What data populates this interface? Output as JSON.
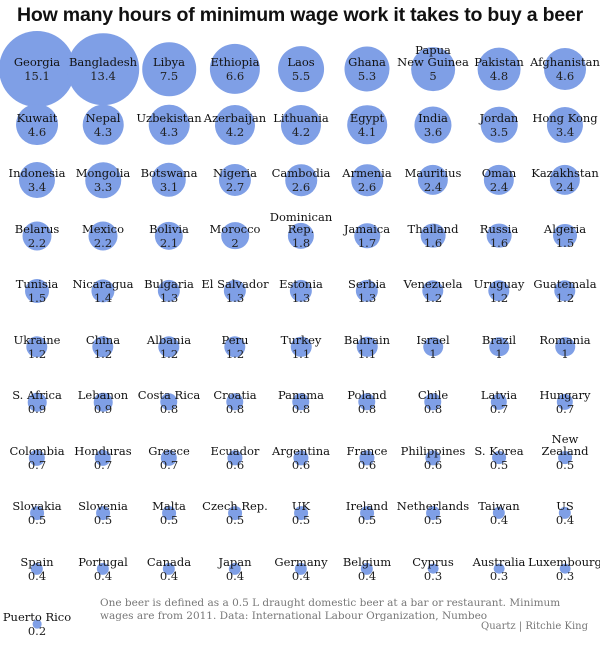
{
  "chart_data": {
    "type": "bubble",
    "title": "How many hours of minimum wage work it takes to buy a beer",
    "unit": "hours",
    "accent_color": "#7f9fe6",
    "items": [
      {
        "name": "Georgia",
        "value": 15.1
      },
      {
        "name": "Bangladesh",
        "value": 13.4
      },
      {
        "name": "Libya",
        "value": 7.5
      },
      {
        "name": "Ethiopia",
        "value": 6.6
      },
      {
        "name": "Laos",
        "value": 5.5
      },
      {
        "name": "Ghana",
        "value": 5.3
      },
      {
        "name": "Papua\nNew Guinea",
        "value": 5
      },
      {
        "name": "Pakistan",
        "value": 4.8
      },
      {
        "name": "Afghanistan",
        "value": 4.6
      },
      {
        "name": "Kuwait",
        "value": 4.6
      },
      {
        "name": "Nepal",
        "value": 4.3
      },
      {
        "name": "Uzbekistan",
        "value": 4.3
      },
      {
        "name": "Azerbaijan",
        "value": 4.2
      },
      {
        "name": "Lithuania",
        "value": 4.2
      },
      {
        "name": "Egypt",
        "value": 4.1
      },
      {
        "name": "India",
        "value": 3.6
      },
      {
        "name": "Jordan",
        "value": 3.5
      },
      {
        "name": "Hong Kong",
        "value": 3.4
      },
      {
        "name": "Indonesia",
        "value": 3.4
      },
      {
        "name": "Mongolia",
        "value": 3.3
      },
      {
        "name": "Botswana",
        "value": 3.1
      },
      {
        "name": "Nigeria",
        "value": 2.7
      },
      {
        "name": "Cambodia",
        "value": 2.6
      },
      {
        "name": "Armenia",
        "value": 2.6
      },
      {
        "name": "Mauritius",
        "value": 2.4
      },
      {
        "name": "Oman",
        "value": 2.4
      },
      {
        "name": "Kazakhstan",
        "value": 2.4
      },
      {
        "name": "Belarus",
        "value": 2.2
      },
      {
        "name": "Mexico",
        "value": 2.2
      },
      {
        "name": "Bolivia",
        "value": 2.1
      },
      {
        "name": "Morocco",
        "value": 2
      },
      {
        "name": "Dominican\nRep.",
        "value": 1.8
      },
      {
        "name": "Jamaica",
        "value": 1.7
      },
      {
        "name": "Thailand",
        "value": 1.6
      },
      {
        "name": "Russia",
        "value": 1.6
      },
      {
        "name": "Algeria",
        "value": 1.5
      },
      {
        "name": "Tunisia",
        "value": 1.5
      },
      {
        "name": "Nicaragua",
        "value": 1.4
      },
      {
        "name": "Bulgaria",
        "value": 1.3
      },
      {
        "name": "El Salvador",
        "value": 1.3
      },
      {
        "name": "Estonia",
        "value": 1.3
      },
      {
        "name": "Serbia",
        "value": 1.3
      },
      {
        "name": "Venezuela",
        "value": 1.2
      },
      {
        "name": "Uruguay",
        "value": 1.2
      },
      {
        "name": "Guatemala",
        "value": 1.2
      },
      {
        "name": "Ukraine",
        "value": 1.2
      },
      {
        "name": "China",
        "value": 1.2
      },
      {
        "name": "Albania",
        "value": 1.2
      },
      {
        "name": "Peru",
        "value": 1.2
      },
      {
        "name": "Turkey",
        "value": 1.1
      },
      {
        "name": "Bahrain",
        "value": 1.1
      },
      {
        "name": "Israel",
        "value": 1
      },
      {
        "name": "Brazil",
        "value": 1
      },
      {
        "name": "Romania",
        "value": 1
      },
      {
        "name": "S. Africa",
        "value": 0.9
      },
      {
        "name": "Lebanon",
        "value": 0.9
      },
      {
        "name": "Costa Rica",
        "value": 0.8
      },
      {
        "name": "Croatia",
        "value": 0.8
      },
      {
        "name": "Panama",
        "value": 0.8
      },
      {
        "name": "Poland",
        "value": 0.8
      },
      {
        "name": "Chile",
        "value": 0.8
      },
      {
        "name": "Latvia",
        "value": 0.7
      },
      {
        "name": "Hungary",
        "value": 0.7
      },
      {
        "name": "Colombia",
        "value": 0.7
      },
      {
        "name": "Honduras",
        "value": 0.7
      },
      {
        "name": "Greece",
        "value": 0.7
      },
      {
        "name": "Ecuador",
        "value": 0.6
      },
      {
        "name": "Argentina",
        "value": 0.6
      },
      {
        "name": "France",
        "value": 0.6
      },
      {
        "name": "Philippines",
        "value": 0.6
      },
      {
        "name": "S. Korea",
        "value": 0.5
      },
      {
        "name": "New\nZealand",
        "value": 0.5
      },
      {
        "name": "Slovakia",
        "value": 0.5
      },
      {
        "name": "Slovenia",
        "value": 0.5
      },
      {
        "name": "Malta",
        "value": 0.5
      },
      {
        "name": "Czech Rep.",
        "value": 0.5
      },
      {
        "name": "UK",
        "value": 0.5
      },
      {
        "name": "Ireland",
        "value": 0.5
      },
      {
        "name": "Netherlands",
        "value": 0.5
      },
      {
        "name": "Taiwan",
        "value": 0.4
      },
      {
        "name": "US",
        "value": 0.4
      },
      {
        "name": "Spain",
        "value": 0.4
      },
      {
        "name": "Portugal",
        "value": 0.4
      },
      {
        "name": "Canada",
        "value": 0.4
      },
      {
        "name": "Japan",
        "value": 0.4
      },
      {
        "name": "Germany",
        "value": 0.4
      },
      {
        "name": "Belgium",
        "value": 0.4
      },
      {
        "name": "Cyprus",
        "value": 0.3
      },
      {
        "name": "Australia",
        "value": 0.3
      },
      {
        "name": "Luxembourg",
        "value": 0.3
      },
      {
        "name": "Puerto Rico",
        "value": 0.2
      }
    ]
  },
  "footnote": "One beer is defined as a 0.5 L draught domestic beer at a bar or restaurant. Minimum wages are from 2011. Data: International Labour Organization, Numbeo",
  "credit": "Quartz | Ritchie King"
}
